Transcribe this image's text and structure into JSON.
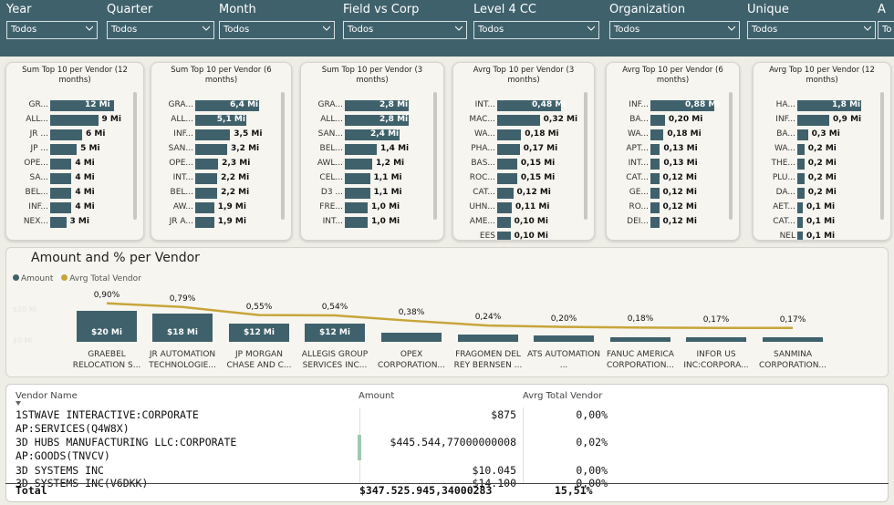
{
  "filters": [
    {
      "label": "Year",
      "value": "Todos"
    },
    {
      "label": "Quarter",
      "value": "Todos"
    },
    {
      "label": "Month",
      "value": "Todos"
    },
    {
      "label": "Field vs Corp",
      "value": "Todos"
    },
    {
      "label": "Level 4 CC",
      "value": "Todos"
    },
    {
      "label": "Organization",
      "value": "Todos"
    },
    {
      "label": "Unique",
      "value": "Todos"
    },
    {
      "label": "A",
      "value": "To"
    }
  ],
  "cards": [
    {
      "title": "Sum Top 10 per Vendor (12 months)",
      "max": 12,
      "rows": [
        [
          "GR...",
          12,
          "12 Mi"
        ],
        [
          "ALL...",
          9,
          "9 Mi"
        ],
        [
          "JR ...",
          6,
          "6 Mi"
        ],
        [
          "JP ...",
          5,
          "5 Mi"
        ],
        [
          "OPE...",
          4,
          "4 Mi"
        ],
        [
          "SA...",
          4,
          "4 Mi"
        ],
        [
          "BEL...",
          4,
          "4 Mi"
        ],
        [
          "INF...",
          4,
          "4 Mi"
        ],
        [
          "NEX...",
          3,
          "3 Mi"
        ]
      ]
    },
    {
      "title": "Sum Top 10 per Vendor (6 months)",
      "max": 6.4,
      "rows": [
        [
          "GRA...",
          6.4,
          "6,4 Mi"
        ],
        [
          "ALL...",
          5.1,
          "5,1 Mi"
        ],
        [
          "INF...",
          3.5,
          "3,5 Mi"
        ],
        [
          "SAN...",
          3.2,
          "3,2 Mi"
        ],
        [
          "OPE...",
          2.3,
          "2,3 Mi"
        ],
        [
          "INT...",
          2.2,
          "2,2 Mi"
        ],
        [
          "BEL...",
          2.2,
          "2,2 Mi"
        ],
        [
          "AW...",
          1.9,
          "1,9 Mi"
        ],
        [
          "JR A...",
          1.9,
          "1,9 Mi"
        ]
      ]
    },
    {
      "title": "Sum Top 10 per Vendor (3 months)",
      "max": 2.8,
      "rows": [
        [
          "GRA...",
          2.8,
          "2,8 Mi"
        ],
        [
          "ALL...",
          2.8,
          "2,8 Mi"
        ],
        [
          "SAN...",
          2.4,
          "2,4 Mi"
        ],
        [
          "BEL...",
          1.4,
          "1,4 Mi"
        ],
        [
          "AWL...",
          1.2,
          "1,2 Mi"
        ],
        [
          "CEL...",
          1.1,
          "1,1 Mi"
        ],
        [
          "D3 ...",
          1.1,
          "1,1 Mi"
        ],
        [
          "FRE...",
          1.0,
          "1,0 Mi"
        ],
        [
          "INT...",
          1.0,
          "1,0 Mi"
        ]
      ]
    },
    {
      "title": "Avrg Top 10 per Vendor (3 months)",
      "max": 0.48,
      "rows": [
        [
          "INT...",
          0.48,
          "0,48 Mi"
        ],
        [
          "MAC...",
          0.32,
          "0,32 Mi"
        ],
        [
          "WA...",
          0.18,
          "0,18 Mi"
        ],
        [
          "PHA...",
          0.17,
          "0,17 Mi"
        ],
        [
          "BAS...",
          0.15,
          "0,15 Mi"
        ],
        [
          "ROC...",
          0.15,
          "0,15 Mi"
        ],
        [
          "CAT...",
          0.12,
          "0,12 Mi"
        ],
        [
          "UHN...",
          0.11,
          "0,11 Mi"
        ],
        [
          "AME...",
          0.1,
          "0,10 Mi"
        ],
        [
          "EES",
          0.1,
          "0,10 Mi"
        ]
      ]
    },
    {
      "title": "Avrg Top 10 per Vendor (6 months)",
      "max": 0.88,
      "rows": [
        [
          "INF...",
          0.88,
          "0,88 Mi"
        ],
        [
          "BA...",
          0.2,
          "0,20 Mi"
        ],
        [
          "WA...",
          0.18,
          "0,18 Mi"
        ],
        [
          "APT...",
          0.13,
          "0,13 Mi"
        ],
        [
          "INT...",
          0.13,
          "0,13 Mi"
        ],
        [
          "CAT...",
          0.12,
          "0,12 Mi"
        ],
        [
          "GE...",
          0.12,
          "0,12 Mi"
        ],
        [
          "RO...",
          0.12,
          "0,12 Mi"
        ],
        [
          "DEI...",
          0.12,
          "0,12 Mi"
        ]
      ]
    },
    {
      "title": "Avrg Top 10 per Vendor (12 months)",
      "max": 1.8,
      "rows": [
        [
          "HA...",
          1.8,
          "1,8 Mi"
        ],
        [
          "INF...",
          0.9,
          "0,9 Mi"
        ],
        [
          "BA...",
          0.3,
          "0,3 Mi"
        ],
        [
          "WA...",
          0.2,
          "0,2 Mi"
        ],
        [
          "THE...",
          0.2,
          "0,2 Mi"
        ],
        [
          "PLU...",
          0.2,
          "0,2 Mi"
        ],
        [
          "DA...",
          0.2,
          "0,2 Mi"
        ],
        [
          "AET...",
          0.1,
          "0,1 Mi"
        ],
        [
          "CAT...",
          0.1,
          "0,1 Mi"
        ],
        [
          "NEL",
          0.1,
          "0,1 Mi"
        ]
      ]
    }
  ],
  "combo": {
    "title": "Amount and % per Vendor",
    "legend": [
      {
        "name": "Amount",
        "color": "#3f616c"
      },
      {
        "name": "Avrg Total Vendor",
        "color": "#c8a53a"
      }
    ],
    "y_left_ticks": [
      "$20 Mi",
      "$0 Mi"
    ]
  },
  "chart_data": {
    "type": "bar",
    "title": "Amount and % per Vendor",
    "categories": [
      "GRAEBEL RELOCATION S...",
      "JR AUTOMATION TECHNOLOGIE...",
      "JP MORGAN CHASE AND C...",
      "ALLEGIS GROUP SERVICES INC...",
      "OPEX CORPORATION...",
      "FRAGOMEN DEL REY BERNSEN ...",
      "ATS AUTOMATION ...",
      "FANUC AMERICA CORPORATION...",
      "INFOR US INC:CORPORA...",
      "SANMINA CORPORATION..."
    ],
    "series": [
      {
        "name": "Amount",
        "values": [
          20,
          18,
          12,
          12,
          6,
          5,
          4,
          3,
          3,
          3
        ],
        "labels": [
          "$20 Mi",
          "$18 Mi",
          "$12 Mi",
          "$12 Mi",
          "",
          "",
          "",
          "",
          "",
          ""
        ]
      },
      {
        "name": "Avrg Total Vendor",
        "values": [
          0.9,
          0.79,
          0.55,
          0.54,
          0.38,
          0.24,
          0.2,
          0.18,
          0.17,
          0.17
        ],
        "labels": [
          "0,90%",
          "0,79%",
          "0,55%",
          "0,54%",
          "0,38%",
          "0,24%",
          "0,20%",
          "0,18%",
          "0,17%",
          "0,17%"
        ]
      }
    ],
    "ylabel": "",
    "xlabel": "",
    "ylim": [
      0,
      30
    ],
    "y2lim": [
      0,
      1.3
    ],
    "legend": "top-left"
  },
  "table": {
    "headers": [
      "Vendor Name",
      "Amount",
      "Avrg Total Vendor"
    ],
    "rows": [
      {
        "name1": "1STWAVE INTERACTIVE:CORPORATE",
        "name2": "AP:SERVICES(Q4W8X)",
        "amount": "$875",
        "pct": "0,00%"
      },
      {
        "name1": "3D HUBS MANUFACTURING LLC:CORPORATE",
        "name2": "AP:GOODS(TNVCV)",
        "amount": "$445.544,77000000008",
        "pct": "0,02%"
      },
      {
        "name1": "3D SYSTEMS INC",
        "name2": "",
        "amount": "$10.045",
        "pct": "0,00%"
      },
      {
        "name1": "3D SYSTEMS INC(V6DKK)",
        "name2": "",
        "amount": "$14.100",
        "pct": "0,00%"
      }
    ],
    "total": {
      "label": "Total",
      "amount": "$347.525.945,34000283",
      "pct": "15,51%"
    }
  }
}
